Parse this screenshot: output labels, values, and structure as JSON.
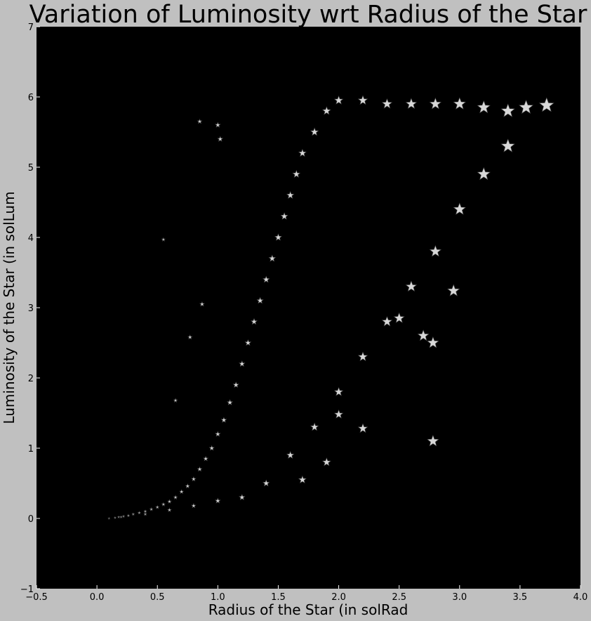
{
  "chart_data": {
    "type": "scatter",
    "title": "Variation of Luminosity wrt Radius of the Star",
    "xlabel": "Radius of the Star (in solRad",
    "ylabel": "Luminosity of the Star (in solLum",
    "xlim": [
      -0.5,
      4.0
    ],
    "ylim": [
      -1,
      7
    ],
    "xticks": [
      "−0.5",
      "0.0",
      "0.5",
      "1.0",
      "1.5",
      "2.0",
      "2.5",
      "3.0",
      "3.5",
      "4.0"
    ],
    "yticks": [
      "−1",
      "0",
      "1",
      "2",
      "3",
      "4",
      "5",
      "6",
      "7"
    ],
    "marker": "star",
    "grid": false,
    "colors": {
      "figure_background": "#c0c0c0",
      "plot_background": "#000000",
      "marker_fill": "#d8d8d8",
      "marker_edge": "#555555"
    },
    "points": [
      [
        0.1,
        0.0
      ],
      [
        0.15,
        0.01
      ],
      [
        0.18,
        0.02
      ],
      [
        0.22,
        0.03
      ],
      [
        0.26,
        0.04
      ],
      [
        0.3,
        0.06
      ],
      [
        0.35,
        0.08
      ],
      [
        0.4,
        0.1
      ],
      [
        0.45,
        0.13
      ],
      [
        0.5,
        0.16
      ],
      [
        0.55,
        0.2
      ],
      [
        0.6,
        0.24
      ],
      [
        0.65,
        0.3
      ],
      [
        0.7,
        0.38
      ],
      [
        0.75,
        0.46
      ],
      [
        0.8,
        0.56
      ],
      [
        0.85,
        0.7
      ],
      [
        0.9,
        0.85
      ],
      [
        0.95,
        1.0
      ],
      [
        1.0,
        1.2
      ],
      [
        1.05,
        1.4
      ],
      [
        1.1,
        1.65
      ],
      [
        1.15,
        1.9
      ],
      [
        1.2,
        2.2
      ],
      [
        1.25,
        2.5
      ],
      [
        1.3,
        2.8
      ],
      [
        1.35,
        3.1
      ],
      [
        1.4,
        3.4
      ],
      [
        1.45,
        3.7
      ],
      [
        1.5,
        4.0
      ],
      [
        1.55,
        4.3
      ],
      [
        1.6,
        4.6
      ],
      [
        1.65,
        4.9
      ],
      [
        1.7,
        5.2
      ],
      [
        1.8,
        5.5
      ],
      [
        1.9,
        5.8
      ],
      [
        2.0,
        5.95
      ],
      [
        2.2,
        5.95
      ],
      [
        2.4,
        5.9
      ],
      [
        2.6,
        5.9
      ],
      [
        2.8,
        5.9
      ],
      [
        3.0,
        5.9
      ],
      [
        3.2,
        5.85
      ],
      [
        3.4,
        5.8
      ],
      [
        3.55,
        5.85
      ],
      [
        3.72,
        5.88
      ],
      [
        3.4,
        5.3
      ],
      [
        3.2,
        4.9
      ],
      [
        3.0,
        4.4
      ],
      [
        2.8,
        3.8
      ],
      [
        2.6,
        3.3
      ],
      [
        2.4,
        2.8
      ],
      [
        2.2,
        2.3
      ],
      [
        2.0,
        1.8
      ],
      [
        1.8,
        1.3
      ],
      [
        1.6,
        0.9
      ],
      [
        1.4,
        0.5
      ],
      [
        1.2,
        0.3
      ],
      [
        1.0,
        0.25
      ],
      [
        0.8,
        0.18
      ],
      [
        0.6,
        0.12
      ],
      [
        0.4,
        0.06
      ],
      [
        0.2,
        0.02
      ],
      [
        1.0,
        5.6
      ],
      [
        1.02,
        5.4
      ],
      [
        0.85,
        5.65
      ],
      [
        0.55,
        3.97
      ],
      [
        0.77,
        2.58
      ],
      [
        0.65,
        1.68
      ],
      [
        0.87,
        3.05
      ],
      [
        2.78,
        1.1
      ],
      [
        2.95,
        3.24
      ],
      [
        2.7,
        2.6
      ],
      [
        2.78,
        2.5
      ],
      [
        2.5,
        2.85
      ],
      [
        2.2,
        1.28
      ],
      [
        2.0,
        1.48
      ],
      [
        1.9,
        0.8
      ],
      [
        1.7,
        0.55
      ]
    ]
  }
}
